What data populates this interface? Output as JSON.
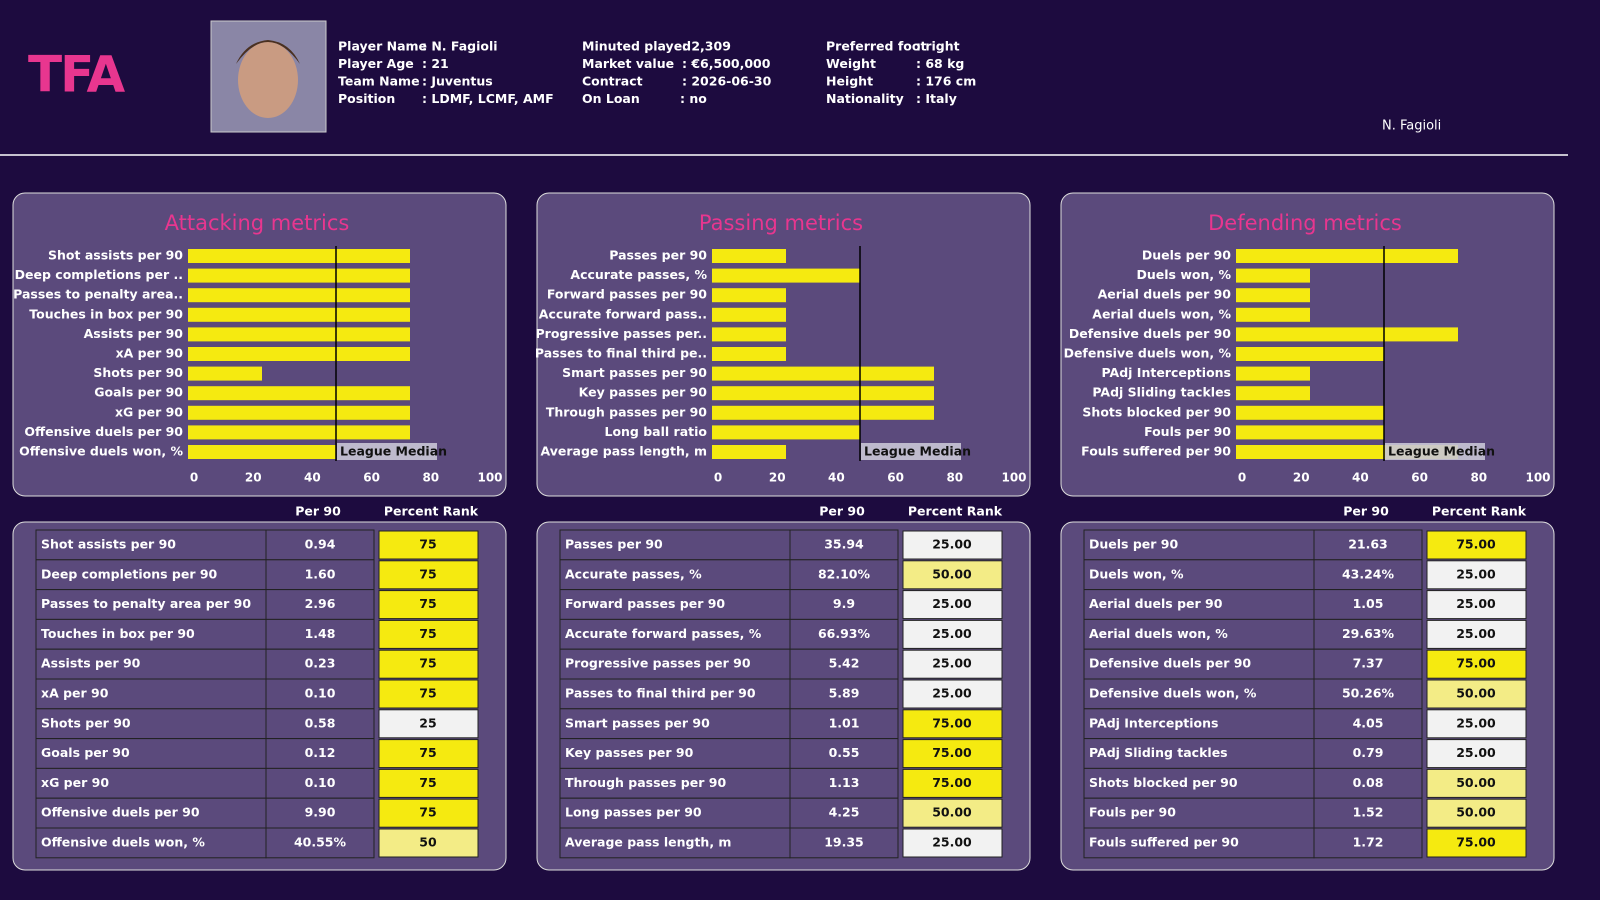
{
  "header": {
    "logo": "TFA",
    "info": [
      [
        {
          "label": "Player Name",
          "value": ": N. Fagioli"
        },
        {
          "label": "Player Age",
          "value": ": 21"
        },
        {
          "label": "Team Name",
          "value": ": Juventus"
        },
        {
          "label": "Position",
          "value": ": LDMF, LCMF, AMF"
        }
      ],
      [
        {
          "label": "Minuted played",
          "value": ": 2,309"
        },
        {
          "label": "Market value",
          "value": ": €6,500,000"
        },
        {
          "label": "Contract",
          "value": ": 2026-06-30"
        },
        {
          "label": "On Loan",
          "value": ": no"
        }
      ],
      [
        {
          "label": "Preferred foot",
          "value": ": right"
        },
        {
          "label": "Weight",
          "value": ": 68 kg"
        },
        {
          "label": "Height",
          "value": ": 176 cm"
        },
        {
          "label": "Nationality",
          "value": ": Italy"
        }
      ]
    ],
    "name_tag": "N. Fagioli"
  },
  "chart_data": [
    {
      "type": "bar",
      "orientation": "horizontal",
      "title": "Attacking metrics",
      "color": "#f5ea10",
      "xlim": [
        0,
        100
      ],
      "xticks": [
        0,
        20,
        40,
        60,
        80,
        100
      ],
      "median": 50,
      "median_label": "League Median",
      "categories": [
        "Shot assists per 90",
        "Deep completions per ..",
        "Passes to penalty area..",
        "Touches in box per 90",
        "Assists per 90",
        "xA per 90",
        "Shots per 90",
        "Goals per 90",
        "xG per 90",
        "Offensive duels per 90",
        "Offensive duels won, %"
      ],
      "values": [
        75,
        75,
        75,
        75,
        75,
        75,
        25,
        75,
        75,
        75,
        50
      ]
    },
    {
      "type": "bar",
      "orientation": "horizontal",
      "title": "Passing metrics",
      "color": "#f5ea10",
      "xlim": [
        0,
        100
      ],
      "xticks": [
        0,
        20,
        40,
        60,
        80,
        100
      ],
      "median": 50,
      "median_label": "League Median",
      "categories": [
        "Passes per 90",
        "Accurate passes, %",
        "Forward passes per 90",
        "Accurate forward pass..",
        "Progressive passes per..",
        "Passes to final third pe..",
        "Smart passes per 90",
        "Key passes per 90",
        "Through passes per 90",
        "Long ball ratio",
        "Average pass length, m"
      ],
      "values": [
        25,
        50,
        25,
        25,
        25,
        25,
        75,
        75,
        75,
        50,
        25
      ]
    },
    {
      "type": "bar",
      "orientation": "horizontal",
      "title": "Defending metrics",
      "color": "#f5ea10",
      "xlim": [
        0,
        100
      ],
      "xticks": [
        0,
        20,
        40,
        60,
        80,
        100
      ],
      "median": 50,
      "median_label": "League Median",
      "categories": [
        "Duels per 90",
        "Duels won, %",
        "Aerial duels per 90",
        "Aerial duels won, %",
        "Defensive duels per 90",
        "Defensive duels won, %",
        "PAdj Interceptions",
        "PAdj Sliding tackles",
        "Shots blocked per 90",
        "Fouls per 90",
        "Fouls suffered per 90"
      ],
      "values": [
        75,
        25,
        25,
        25,
        75,
        50,
        25,
        25,
        50,
        50,
        75
      ]
    }
  ],
  "tables": [
    {
      "columns": [
        "Per 90",
        "Percent Rank"
      ],
      "rows": [
        [
          "Shot assists per 90",
          "0.94",
          "75"
        ],
        [
          "Deep completions per 90",
          "1.60",
          "75"
        ],
        [
          "Passes to penalty area per 90",
          "2.96",
          "75"
        ],
        [
          "Touches in box per 90",
          "1.48",
          "75"
        ],
        [
          "Assists per 90",
          "0.23",
          "75"
        ],
        [
          "xA per 90",
          "0.10",
          "75"
        ],
        [
          "Shots per 90",
          "0.58",
          "25"
        ],
        [
          "Goals per 90",
          "0.12",
          "75"
        ],
        [
          "xG per 90",
          "0.10",
          "75"
        ],
        [
          "Offensive duels per 90",
          "9.90",
          "75"
        ],
        [
          "Offensive duels won, %",
          "40.55%",
          "50"
        ]
      ]
    },
    {
      "columns": [
        "Per 90",
        "Percent Rank"
      ],
      "rows": [
        [
          "Passes per 90",
          "35.94",
          "25.00"
        ],
        [
          "Accurate passes, %",
          "82.10%",
          "50.00"
        ],
        [
          "Forward passes per 90",
          "9.9",
          "25.00"
        ],
        [
          "Accurate forward passes, %",
          "66.93%",
          "25.00"
        ],
        [
          "Progressive passes per 90",
          "5.42",
          "25.00"
        ],
        [
          "Passes to final third per 90",
          "5.89",
          "25.00"
        ],
        [
          "Smart passes per 90",
          "1.01",
          "75.00"
        ],
        [
          "Key passes per 90",
          "0.55",
          "75.00"
        ],
        [
          "Through passes per 90",
          "1.13",
          "75.00"
        ],
        [
          "Long passes per 90",
          "4.25",
          "50.00"
        ],
        [
          "Average pass length, m",
          "19.35",
          "25.00"
        ]
      ]
    },
    {
      "columns": [
        "Per 90",
        "Percent Rank"
      ],
      "rows": [
        [
          "Duels per 90",
          "21.63",
          "75.00"
        ],
        [
          "Duels won, %",
          "43.24%",
          "25.00"
        ],
        [
          "Aerial duels per 90",
          "1.05",
          "25.00"
        ],
        [
          "Aerial duels won, %",
          "29.63%",
          "25.00"
        ],
        [
          "Defensive duels per 90",
          "7.37",
          "75.00"
        ],
        [
          "Defensive duels won, %",
          "50.26%",
          "50.00"
        ],
        [
          "PAdj Interceptions",
          "4.05",
          "25.00"
        ],
        [
          "PAdj Sliding tackles",
          "0.79",
          "25.00"
        ],
        [
          "Shots blocked per 90",
          "0.08",
          "50.00"
        ],
        [
          "Fouls per 90",
          "1.52",
          "50.00"
        ],
        [
          "Fouls suffered per 90",
          "1.72",
          "75.00"
        ]
      ]
    }
  ]
}
